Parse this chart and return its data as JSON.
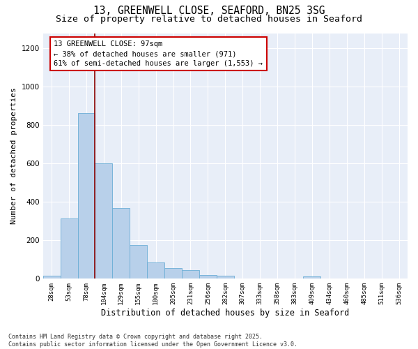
{
  "title1": "13, GREENWELL CLOSE, SEAFORD, BN25 3SG",
  "title2": "Size of property relative to detached houses in Seaford",
  "xlabel": "Distribution of detached houses by size in Seaford",
  "ylabel": "Number of detached properties",
  "categories": [
    "28sqm",
    "53sqm",
    "78sqm",
    "104sqm",
    "129sqm",
    "155sqm",
    "180sqm",
    "205sqm",
    "231sqm",
    "256sqm",
    "282sqm",
    "307sqm",
    "333sqm",
    "358sqm",
    "383sqm",
    "409sqm",
    "434sqm",
    "460sqm",
    "485sqm",
    "511sqm",
    "536sqm"
  ],
  "values": [
    15,
    315,
    865,
    600,
    370,
    175,
    85,
    55,
    45,
    20,
    15,
    0,
    0,
    0,
    0,
    12,
    0,
    0,
    0,
    0,
    0
  ],
  "bar_color": "#b8d0ea",
  "bar_edge_color": "#6baed6",
  "bg_color": "#e8eef8",
  "vline_x": 2.5,
  "vline_color": "#8b0000",
  "annotation_text": "13 GREENWELL CLOSE: 97sqm\n← 38% of detached houses are smaller (971)\n61% of semi-detached houses are larger (1,553) →",
  "annotation_box_color": "white",
  "annotation_box_edge_color": "#cc0000",
  "ylim": [
    0,
    1280
  ],
  "yticks": [
    0,
    200,
    400,
    600,
    800,
    1000,
    1200
  ],
  "footnote": "Contains HM Land Registry data © Crown copyright and database right 2025.\nContains public sector information licensed under the Open Government Licence v3.0.",
  "title_fontsize": 10.5,
  "subtitle_fontsize": 9.5,
  "xlabel_fontsize": 8.5,
  "ylabel_fontsize": 8,
  "annotation_fontsize": 7.5,
  "footnote_fontsize": 6.0
}
